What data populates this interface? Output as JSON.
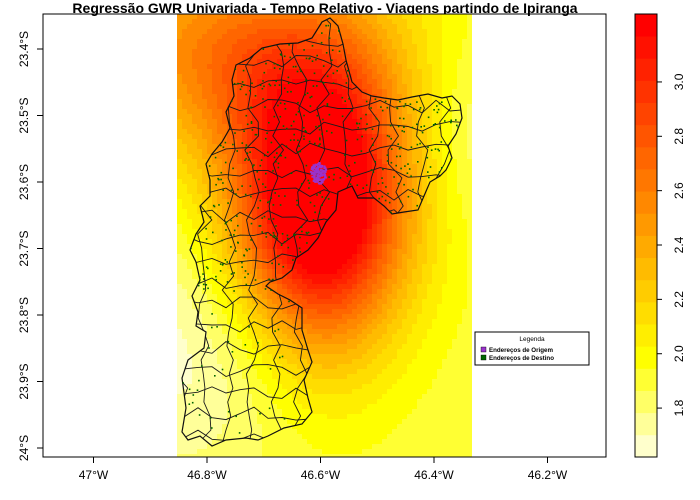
{
  "chart_data": {
    "type": "heatmap",
    "title": "Regressão GWR Univariada - Tempo Relativo - Viagens partindo de Ipiranga",
    "xlabel": "",
    "ylabel": "",
    "x_ticks": [
      {
        "value": -47.0,
        "label": "47°W"
      },
      {
        "value": -46.8,
        "label": "46.8°W"
      },
      {
        "value": -46.6,
        "label": "46.6°W"
      },
      {
        "value": -46.4,
        "label": "46.4°W"
      },
      {
        "value": -46.2,
        "label": "46.2°W"
      }
    ],
    "y_ticks": [
      {
        "value": -23.4,
        "label": "23.4°S"
      },
      {
        "value": -23.5,
        "label": "23.5°S"
      },
      {
        "value": -23.6,
        "label": "23.6°S"
      },
      {
        "value": -23.7,
        "label": "23.7°S"
      },
      {
        "value": -23.8,
        "label": "23.8°S"
      },
      {
        "value": -23.9,
        "label": "23.9°S"
      },
      {
        "value": -24.0,
        "label": "24°S"
      }
    ],
    "xlim": [
      -47.05,
      -46.13
    ],
    "ylim": [
      -24.01,
      -23.35
    ],
    "colorbar": {
      "min": 1.62,
      "max": 3.25,
      "colors": [
        "#FFFFCC",
        "#FFFF99",
        "#FFFF66",
        "#FFFF33",
        "#FFFF00",
        "#FFEE00",
        "#FFDD00",
        "#FFCC00",
        "#FFBB00",
        "#FFAA00",
        "#FF9900",
        "#FF8800",
        "#FF7700",
        "#FF6600",
        "#FF5500",
        "#FF4400",
        "#FF3300",
        "#FF2200",
        "#FF1100",
        "#FF0000"
      ],
      "ticks": [
        {
          "value": 1.8,
          "label": "1.8"
        },
        {
          "value": 2.0,
          "label": "2.0"
        },
        {
          "value": 2.2,
          "label": "2.2"
        },
        {
          "value": 2.4,
          "label": "2.4"
        },
        {
          "value": 2.6,
          "label": "2.6"
        },
        {
          "value": 2.8,
          "label": "2.8"
        },
        {
          "value": 3.0,
          "label": "3.0"
        }
      ]
    },
    "legend": {
      "title": "Legenda",
      "placement": "bottom-right",
      "entries": [
        {
          "label": "Endereços de Origem",
          "color": "#9933CC"
        },
        {
          "label": "Endereços de Destino",
          "color": "#006600"
        }
      ]
    },
    "origin_location": {
      "lon": -46.605,
      "lat": -23.59
    }
  }
}
